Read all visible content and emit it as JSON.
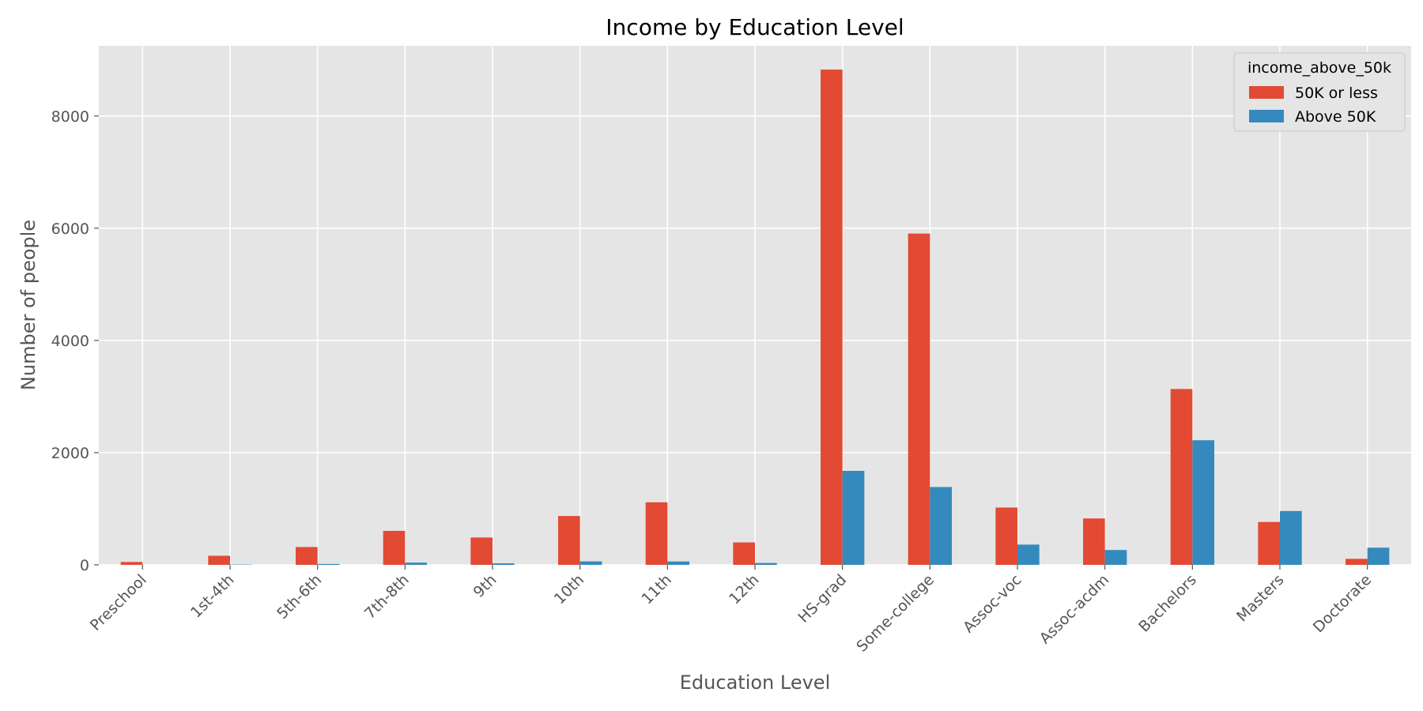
{
  "chart_data": {
    "type": "bar",
    "title": "Income by Education Level",
    "xlabel": "Education Level",
    "ylabel": "Number of people",
    "categories": [
      "Preschool",
      "1st-4th",
      "5th-6th",
      "7th-8th",
      "9th",
      "10th",
      "11th",
      "12th",
      "HS-grad",
      "Some-college",
      "Assoc-voc",
      "Assoc-acdm",
      "Bachelors",
      "Masters",
      "Doctorate"
    ],
    "series": [
      {
        "name": "50K or less",
        "color": "#E24A33",
        "values": [
          51,
          162,
          317,
          606,
          487,
          871,
          1115,
          400,
          8826,
          5904,
          1021,
          827,
          3134,
          764,
          107
        ]
      },
      {
        "name": "Above 50K",
        "color": "#348ABD",
        "values": [
          0,
          6,
          16,
          40,
          27,
          62,
          60,
          33,
          1675,
          1387,
          361,
          265,
          2221,
          959,
          306
        ]
      }
    ],
    "ylim": [
      0,
      9250
    ],
    "yticks": [
      0,
      2000,
      4000,
      6000,
      8000
    ],
    "legend": {
      "title": "income_above_50k",
      "position": "top-right"
    },
    "grid": true,
    "style": "ggplot",
    "plot_background": "#E5E5E5",
    "grid_color": "#FFFFFF"
  }
}
